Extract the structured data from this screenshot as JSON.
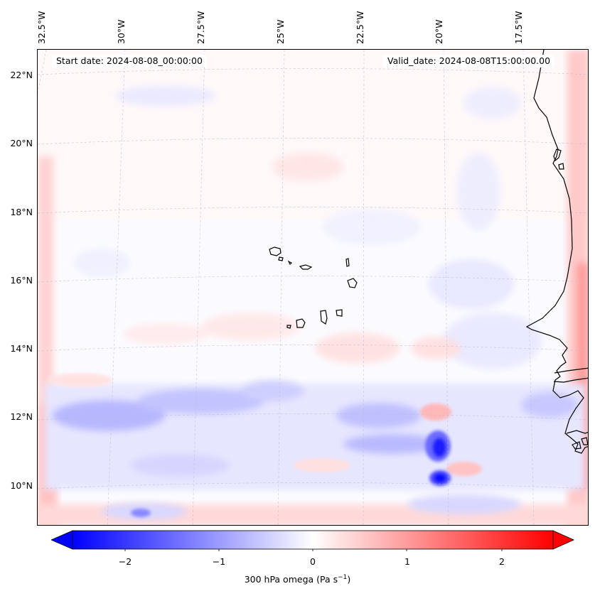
{
  "map": {
    "start_date": "Start date: 2024-08-08_00:00:00",
    "valid_date": "Valid_date: 2024-08-08T15:00:00.00",
    "lon_labels": [
      "32.5°W",
      "30°W",
      "27.5°W",
      "25°W",
      "22.5°W",
      "20°W",
      "17.5°W"
    ],
    "lat_labels": [
      "22°N",
      "20°N",
      "18°N",
      "16°N",
      "14°N",
      "12°N",
      "10°N"
    ],
    "field_name": "300 hPa omega",
    "colormap": "bwr",
    "colors": {
      "negative": "#0000ff",
      "zero": "#ffffff",
      "positive": "#ff0000",
      "coast": "#000000"
    }
  },
  "colorbar": {
    "ticks": [
      "−2",
      "−1",
      "0",
      "1",
      "2"
    ],
    "tick_values": [
      -2,
      -1,
      0,
      1,
      2
    ],
    "range": [
      -2.6,
      2.6
    ],
    "extend": "both",
    "label_main": "300 hPa omega (Pa s",
    "label_sup": "−1",
    "label_end": ")"
  }
}
